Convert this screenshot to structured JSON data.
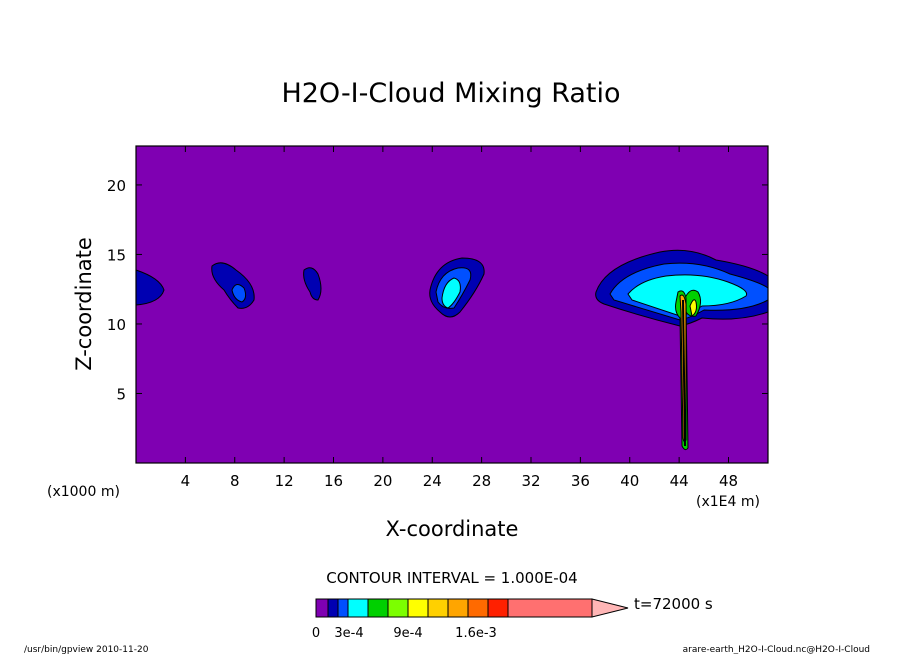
{
  "chart_data": {
    "type": "contour",
    "title": "H2O-I-Cloud Mixing Ratio",
    "xlabel": "X-coordinate",
    "ylabel": "Z-coordinate",
    "x_unit_left": "(x1000 m)",
    "x_unit_right": "(x1E4 m)",
    "x_ticks": [
      "4",
      "8",
      "12",
      "16",
      "20",
      "24",
      "28",
      "32",
      "36",
      "40",
      "44",
      "48"
    ],
    "y_ticks": [
      "5",
      "10",
      "15",
      "20"
    ],
    "xlim": [
      0,
      51.2
    ],
    "ylim": [
      0,
      22.8
    ],
    "contour_interval_text": "CONTOUR INTERVAL = 1.000E-04",
    "time_text": "t=72000 s",
    "colorbar": {
      "labels": [
        "0",
        "3e-4",
        "9e-4",
        "1.6e-3"
      ],
      "colors": [
        "#7f00b2",
        "#0000b2",
        "#0050ff",
        "#00ffff",
        "#00d000",
        "#7cff00",
        "#ffff00",
        "#ffd000",
        "#ffa500",
        "#ff6a00",
        "#ff2000",
        "#ff7070",
        "#ffb6b6"
      ]
    },
    "background_color": "#7f00b2",
    "clouds": [
      {
        "x": 0.0,
        "z": 12.5,
        "level": 1
      },
      {
        "x": 8.2,
        "z": 12.6,
        "level": 2
      },
      {
        "x": 14.5,
        "z": 12.4,
        "level": 1
      },
      {
        "x": 25.5,
        "z": 12.7,
        "level": 3
      },
      {
        "x": 45.5,
        "z": 12.2,
        "level": 5
      }
    ]
  },
  "footer": {
    "left": "/usr/bin/gpview  2010-11-20",
    "right": "arare-earth_H2O-I-Cloud.nc@H2O-I-Cloud"
  }
}
